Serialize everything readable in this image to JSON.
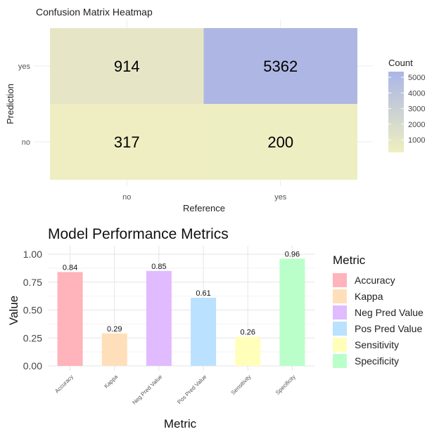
{
  "chart_data": [
    {
      "type": "heatmap",
      "title": "Confusion Matrix Heatmap",
      "xlabel": "Reference",
      "ylabel": "Prediction",
      "x_categories": [
        "no",
        "yes"
      ],
      "y_categories": [
        "no",
        "yes"
      ],
      "cells": [
        {
          "reference": "no",
          "prediction": "yes",
          "value": 914,
          "color": "#e6e6c6"
        },
        {
          "reference": "yes",
          "prediction": "yes",
          "value": 5362,
          "color": "#aeb7e3"
        },
        {
          "reference": "no",
          "prediction": "no",
          "value": 317,
          "color": "#eeeec2"
        },
        {
          "reference": "yes",
          "prediction": "no",
          "value": 200,
          "color": "#eeeec3"
        }
      ],
      "legend": {
        "title": "Count",
        "ticks": [
          1000,
          2000,
          3000,
          4000,
          5000
        ],
        "range": [
          200,
          5362
        ],
        "color_low": "#efefc0",
        "color_high": "#aab6e6"
      }
    },
    {
      "type": "bar",
      "title": "Model Performance Metrics",
      "xlabel": "Metric",
      "ylabel": "Value",
      "ylim": [
        0,
        1
      ],
      "yticks": [
        "0.00",
        "0.25",
        "0.50",
        "0.75",
        "1.00"
      ],
      "grid": true,
      "legend_position": "right",
      "legend_title": "Metric",
      "categories": [
        "Accuracy",
        "Kappa",
        "Neg Pred Value",
        "Pos Pred Value",
        "Sensitivity",
        "Specificity"
      ],
      "values": [
        0.84,
        0.29,
        0.85,
        0.61,
        0.26,
        0.96
      ],
      "labels": [
        "0.84",
        "0.29",
        "0.85",
        "0.61",
        "0.26",
        "0.96"
      ],
      "colors": [
        "#ffb3ba",
        "#ffdfba",
        "#e0bbff",
        "#bae1ff",
        "#ffffba",
        "#baffc9"
      ]
    }
  ]
}
